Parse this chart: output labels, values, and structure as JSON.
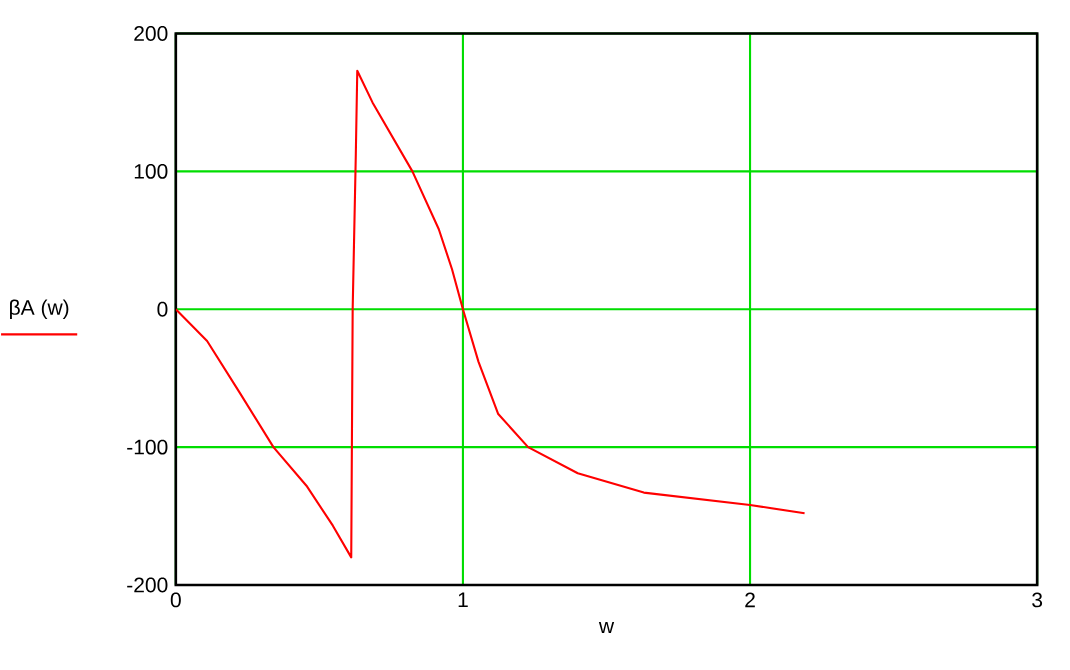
{
  "chart_data": {
    "type": "line",
    "xlabel": "w",
    "ylabel": "βA (w)",
    "xlim": [
      0,
      3
    ],
    "ylim": [
      -200,
      200
    ],
    "xticks": [
      0,
      1,
      2,
      3
    ],
    "yticks": [
      -200,
      -100,
      0,
      100,
      200
    ],
    "grid": true,
    "marker": "none",
    "line_style": "solid",
    "series": [
      {
        "color": "#ff0000",
        "x": [
          0,
          0.109,
          0.224,
          0.34,
          0.455,
          0.547,
          0.611,
          0.616,
          0.627,
          0.632,
          0.685,
          0.824,
          0.916,
          0.962,
          1.0,
          1.054,
          1.123,
          1.227,
          1.4,
          1.63,
          2.0,
          2.19
        ],
        "values": [
          0,
          -23,
          -61,
          -100,
          -128,
          -157,
          -180,
          0,
          113,
          173,
          150,
          100,
          58,
          29,
          0,
          -38,
          -76,
          -100,
          -119,
          -133,
          -142,
          -148
        ]
      }
    ]
  }
}
